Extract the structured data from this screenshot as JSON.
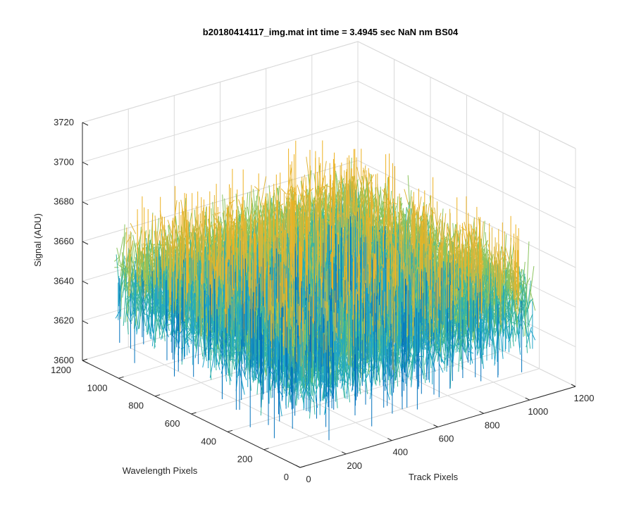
{
  "chart_data": {
    "type": "surface3d",
    "title": "b20180414117_img.mat int time = 3.4945 sec  NaN nm BS04",
    "xlabel": "Track Pixels",
    "ylabel": "Wavelength Pixels",
    "zlabel": "Signal (ADU)",
    "xlim": [
      0,
      1200
    ],
    "ylim": [
      0,
      1200
    ],
    "zlim": [
      3600,
      3720
    ],
    "x_data_range": [
      0,
      1024
    ],
    "y_data_range": [
      0,
      1024
    ],
    "x_ticks": [
      0,
      200,
      400,
      600,
      800,
      1000,
      1200
    ],
    "y_ticks": [
      0,
      200,
      400,
      600,
      800,
      1000,
      1200
    ],
    "z_ticks": [
      3600,
      3620,
      3640,
      3660,
      3680,
      3700,
      3720
    ],
    "signal_mean": 3650,
    "signal_spread": 20,
    "grid": true,
    "box": true,
    "colormap": [
      "#0072BD",
      "#1FA3C9",
      "#38B5A0",
      "#8CC45E",
      "#E0B63A",
      "#EDB120"
    ]
  }
}
